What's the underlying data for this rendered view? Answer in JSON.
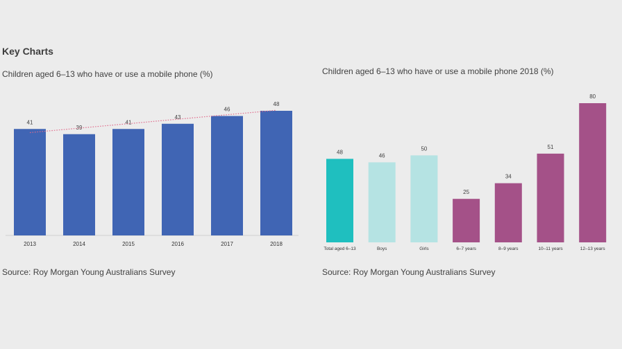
{
  "heading": "Key Charts",
  "chart_data": [
    {
      "type": "bar",
      "title": "Children aged 6–13 who have or use a mobile phone (%)",
      "categories": [
        "2013",
        "2014",
        "2015",
        "2016",
        "2017",
        "2018"
      ],
      "values": [
        41,
        39,
        41,
        43,
        46,
        48
      ],
      "trendline": {
        "style": "dotted",
        "color": "#e06a8a",
        "from": 39.6,
        "to": 48.2
      },
      "bar_color": "#4065b4",
      "ylim": [
        0,
        50
      ],
      "grid": false,
      "source": "Source: Roy Morgan Young Australians Survey"
    },
    {
      "type": "bar",
      "title": "Children aged 6–13 who have or use a mobile phone 2018 (%)",
      "categories": [
        "Total aged 6–13",
        "Boys",
        "Girls",
        "6–7 years",
        "8–9 years",
        "10–11 years",
        "12–13 years"
      ],
      "values": [
        48,
        46,
        50,
        25,
        34,
        51,
        80
      ],
      "colors": [
        "#1fbfbf",
        "#b5e3e3",
        "#b5e3e3",
        "#a45188",
        "#a45188",
        "#a45188",
        "#a45188"
      ],
      "ylim": [
        0,
        80
      ],
      "grid": false,
      "source": "Source: Roy Morgan Young Australians Survey"
    }
  ]
}
